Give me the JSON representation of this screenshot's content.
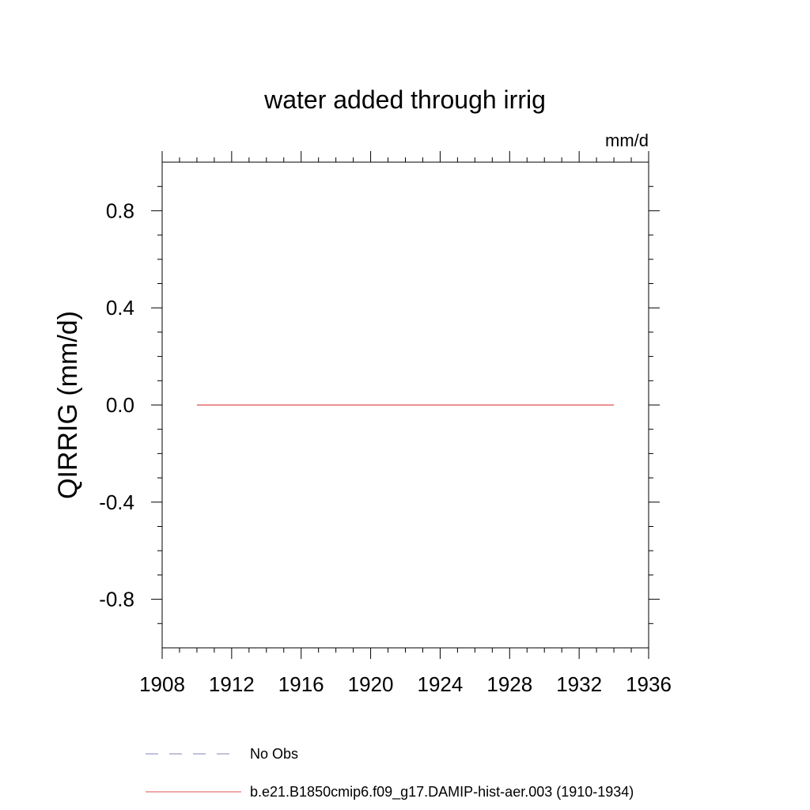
{
  "chart_data": {
    "type": "line",
    "title": "water added through irrig",
    "units_label": "mm/d",
    "ylabel": "QIRRIG  (mm/d)",
    "xlabel": "",
    "xlim": [
      1908,
      1936
    ],
    "ylim": [
      -1.0,
      1.0
    ],
    "x_ticks": [
      1908,
      1912,
      1916,
      1920,
      1924,
      1928,
      1932,
      1936
    ],
    "x_tick_labels": [
      "1908",
      "1912",
      "1916",
      "1920",
      "1924",
      "1928",
      "1932",
      "1936"
    ],
    "y_ticks": [
      -0.8,
      -0.4,
      0.0,
      0.4,
      0.8
    ],
    "y_tick_labels": [
      "-0.8",
      "-0.4",
      "0.0",
      "0.4",
      "0.8"
    ],
    "grid": false,
    "legend_position": "bottom",
    "series": [
      {
        "name": "No Obs",
        "color": "#8080c0",
        "dash": "dashed",
        "x": [],
        "y": []
      },
      {
        "name": "b.e21.B1850cmip6.f09_g17.DAMIP-hist-aer.003 (1910-1934)",
        "color": "#e05050",
        "dash": "solid",
        "x": [
          1910,
          1934
        ],
        "y": [
          0.0,
          0.0
        ]
      }
    ]
  }
}
